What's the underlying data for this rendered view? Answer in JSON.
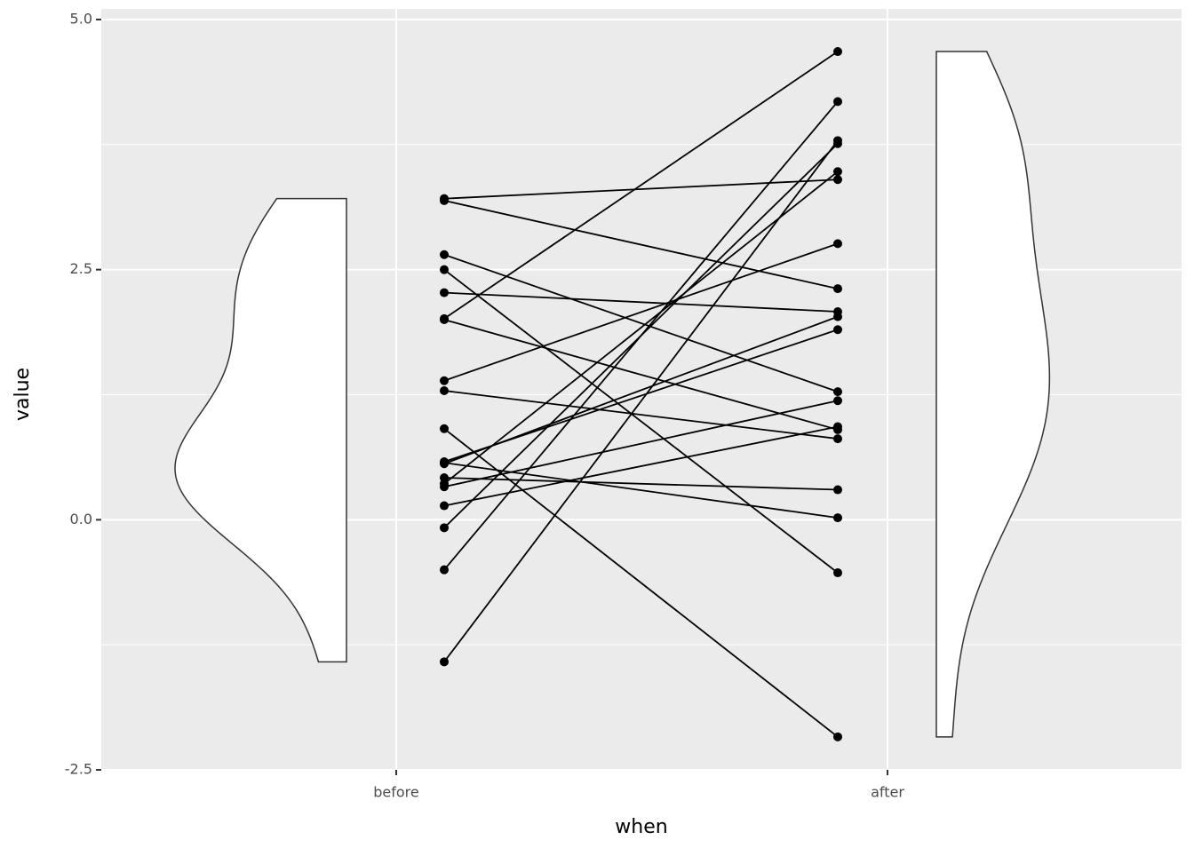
{
  "chart_data": {
    "type": "paired-violin",
    "x_label": "when",
    "y_label": "value",
    "categories": [
      "before",
      "after"
    ],
    "values": [
      [
        3.21,
        3.19,
        2.65,
        2.5,
        2.27,
        2.01,
        2.0,
        1.39,
        1.29,
        0.91,
        0.58,
        0.57,
        0.56,
        0.42,
        0.36,
        0.33,
        0.14,
        -0.08,
        -0.5,
        -1.42
      ],
      [
        3.4,
        2.31,
        1.28,
        -0.53,
        2.08,
        4.68,
        0.9,
        2.76,
        0.81,
        -2.17,
        1.9,
        0.02,
        2.03,
        0.3,
        3.48,
        1.19,
        0.93,
        3.76,
        4.18,
        3.79
      ]
    ],
    "color": "#000000",
    "violin_fill": "#ffffff",
    "violin_stroke": "#333333",
    "ylim": [
      -2.5,
      5.0
    ],
    "yticks": [
      {
        "value": 5.0,
        "label": "5.0"
      },
      {
        "value": 2.5,
        "label": "2.5"
      },
      {
        "value": 0,
        "label": "0.0"
      },
      {
        "value": -2.5,
        "label": "-2.5"
      }
    ],
    "grid": true
  }
}
